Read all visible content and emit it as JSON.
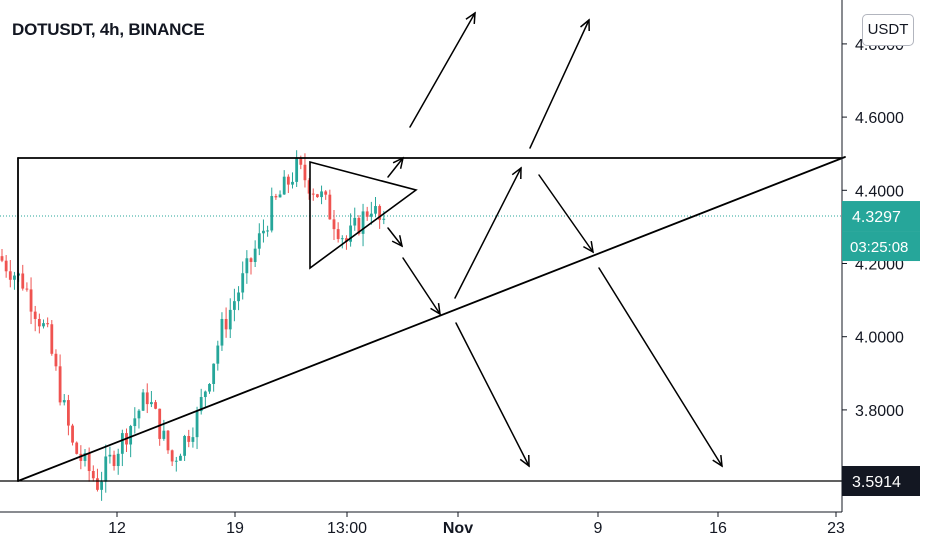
{
  "header": {
    "symbol_title": "DOTUSDT, 4h, BINANCE",
    "currency_button": "USDT"
  },
  "colors": {
    "up": "#26a69a",
    "down": "#ef5350",
    "price_badge": "#26a69a",
    "low_badge": "#131722",
    "axis": "#131722"
  },
  "chart_data": {
    "type": "candlestick",
    "symbol": "DOTUSDT",
    "interval": "4h",
    "exchange": "BINANCE",
    "ylim": [
      3.56,
      4.84
    ],
    "y_ticks": [
      "4.8000",
      "4.6000",
      "4.4000",
      "4.2000",
      "4.0000",
      "3.8000"
    ],
    "x_ticks": [
      "12",
      "19",
      "13:00",
      "Nov",
      "9",
      "16",
      "23"
    ],
    "last_price": "4.3297",
    "countdown": "03:25:08",
    "marked_low": "3.5914",
    "price_path": [
      4.22,
      4.15,
      4.0,
      3.7,
      3.6,
      3.72,
      3.84,
      3.66,
      3.78,
      4.02,
      4.18,
      4.35,
      4.46,
      4.38,
      4.26,
      4.36,
      4.22,
      4.36,
      4.3,
      4.4,
      4.3,
      4.24,
      4.32,
      4.18,
      4.12,
      4.22,
      4.12,
      4.0,
      3.92,
      3.97,
      3.93,
      3.96,
      4.02,
      4.1,
      4.04,
      4.06,
      3.98,
      3.92,
      3.88,
      4.02,
      4.12,
      4.2,
      4.28,
      4.34,
      4.25,
      4.32,
      4.26,
      4.38,
      4.3,
      4.35,
      4.28,
      4.36,
      4.33
    ],
    "drawings": {
      "trendlines": [
        {
          "name": "resistance",
          "from": [
            "Oct 6",
            4.5
          ],
          "to": [
            "Nov 23",
            4.5
          ]
        },
        {
          "name": "support",
          "from": [
            "Oct 6",
            3.59
          ],
          "to": [
            "Nov 23",
            4.5
          ]
        },
        {
          "name": "low line",
          "from": [
            "Oct 6",
            3.59
          ],
          "to": [
            "Nov 23",
            3.59
          ]
        },
        {
          "name": "pennant",
          "points": [
            [
              "Oct 23",
              4.48
            ],
            [
              "Oct 27",
              4.4
            ],
            [
              "Oct 23",
              4.18
            ]
          ]
        }
      ],
      "scenario_arrows": 11
    }
  }
}
